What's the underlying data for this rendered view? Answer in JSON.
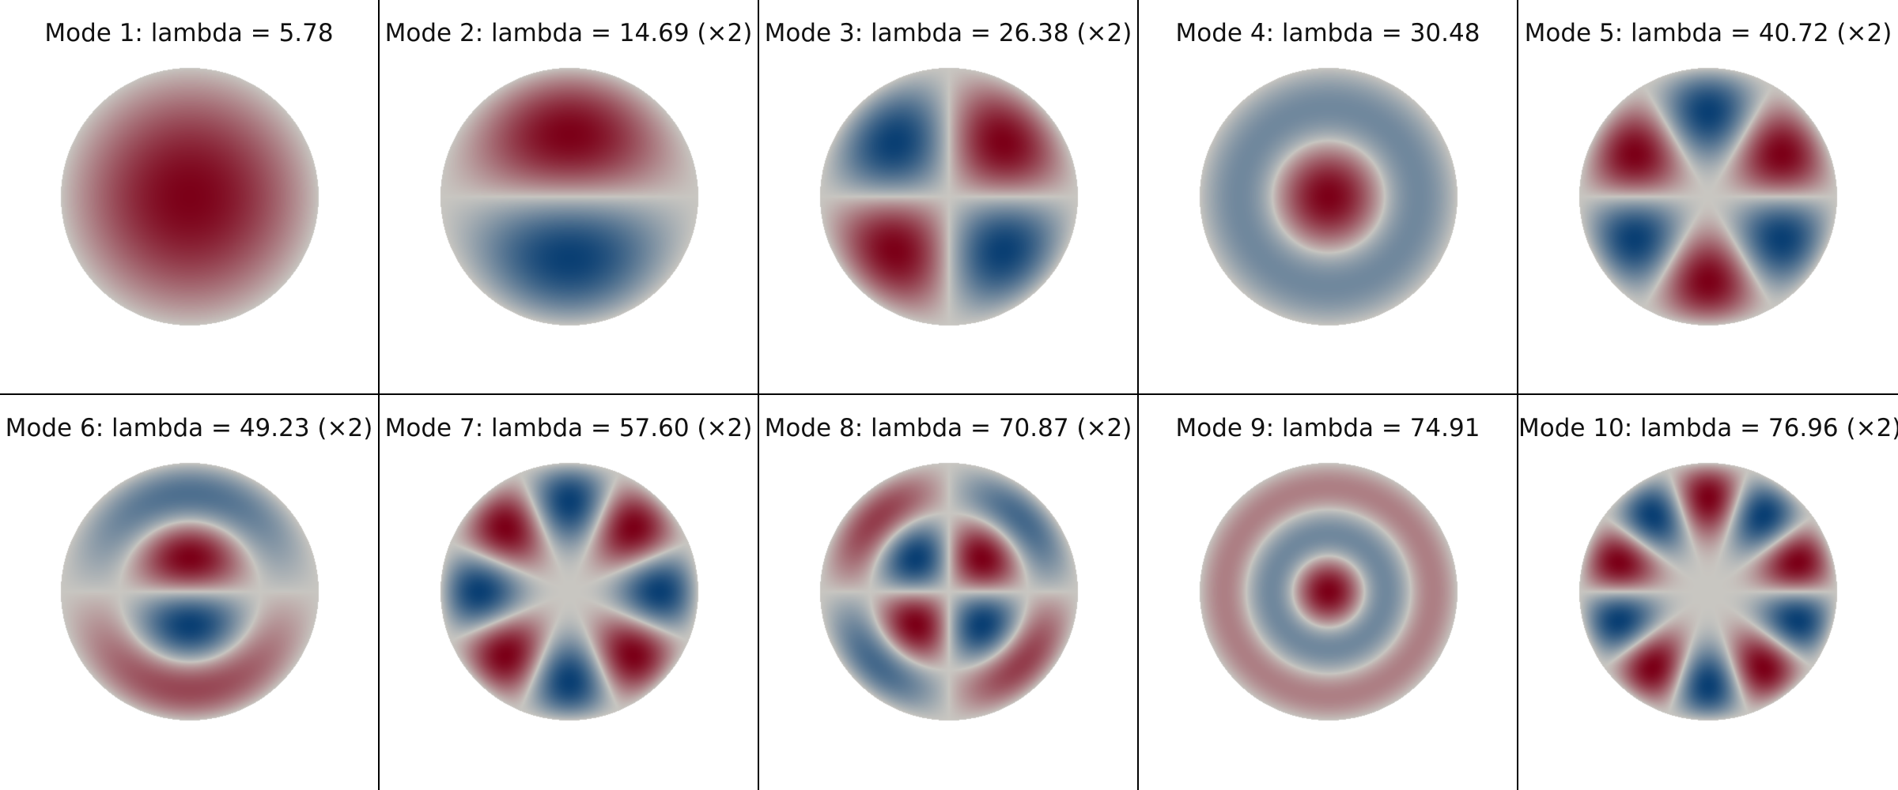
{
  "colormap": {
    "negative": "#0a3f73",
    "neutral": "#c8c6c1",
    "positive": "#7c0018"
  },
  "modes": [
    {
      "label": "Mode 1: lambda = 5.78",
      "m": 0,
      "n": 1,
      "kind": "cos",
      "sign": 1
    },
    {
      "label": "Mode 2: lambda = 14.69 (×2)",
      "m": 1,
      "n": 1,
      "kind": "sin",
      "sign": 1
    },
    {
      "label": "Mode 3: lambda = 26.38 (×2)",
      "m": 2,
      "n": 1,
      "kind": "sin",
      "sign": 1
    },
    {
      "label": "Mode 4: lambda = 30.48",
      "m": 0,
      "n": 2,
      "kind": "cos",
      "sign": 1
    },
    {
      "label": "Mode 5: lambda = 40.72 (×2)",
      "m": 3,
      "n": 1,
      "kind": "sin",
      "sign": 1
    },
    {
      "label": "Mode 6: lambda = 49.23 (×2)",
      "m": 1,
      "n": 2,
      "kind": "sin",
      "sign": 1
    },
    {
      "label": "Mode 7: lambda = 57.60 (×2)",
      "m": 4,
      "n": 1,
      "kind": "cos",
      "sign": -1
    },
    {
      "label": "Mode 8: lambda = 70.87 (×2)",
      "m": 2,
      "n": 2,
      "kind": "sin",
      "sign": 1
    },
    {
      "label": "Mode 9: lambda = 74.91",
      "m": 0,
      "n": 3,
      "kind": "cos",
      "sign": 1
    },
    {
      "label": "Mode 10: lambda = 76.96 (×2)",
      "m": 5,
      "n": 1,
      "kind": "sin",
      "sign": 1
    }
  ]
}
